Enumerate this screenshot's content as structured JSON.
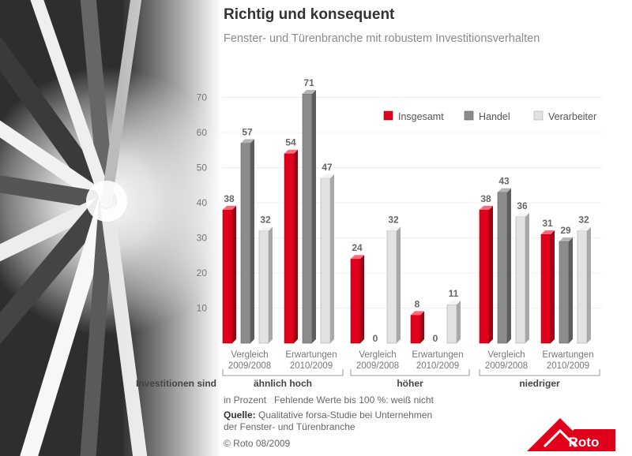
{
  "header": {
    "title": "Richtig und konsequent",
    "subtitle": "Fenster- und Türenbranche mit robustem Investitionsverhalten"
  },
  "footer": {
    "note_unit": "in Prozent",
    "note_missing": "Fehlende Werte bis 100 %: weiß nicht",
    "source_label": "Quelle:",
    "source_line1": "Qualitative forsa-Studie bei Unternehmen",
    "source_line2": "der Fenster- und Türenbranche",
    "copyright": "© Roto 08/2009"
  },
  "logo": {
    "text": "Roto"
  },
  "colors": {
    "insgesamt": "#e0001b",
    "handel": "#8c8c8c",
    "verarbeiter": "#e2e2e2"
  },
  "chart_data": {
    "type": "bar",
    "ylim": [
      0,
      75
    ],
    "yticks": [
      10,
      20,
      30,
      40,
      50,
      60,
      70
    ],
    "row_label": "Investitionen sind",
    "legend": {
      "placement": "top-right",
      "entries": [
        "Insgesamt",
        "Handel",
        "Verarbeiter"
      ]
    },
    "groups": [
      {
        "label": "ähnlich hoch",
        "categories": [
          {
            "label": [
              "Vergleich",
              "2009/2008"
            ],
            "values": [
              38,
              57,
              32
            ]
          },
          {
            "label": [
              "Erwartungen",
              "2010/2009"
            ],
            "values": [
              54,
              71,
              47
            ]
          }
        ]
      },
      {
        "label": "höher",
        "categories": [
          {
            "label": [
              "Vergleich",
              "2009/2008"
            ],
            "values": [
              24,
              0,
              32
            ]
          },
          {
            "label": [
              "Erwartungen",
              "2010/2009"
            ],
            "values": [
              8,
              0,
              11
            ]
          }
        ]
      },
      {
        "label": "niedriger",
        "categories": [
          {
            "label": [
              "Vergleich",
              "2009/2008"
            ],
            "values": [
              38,
              43,
              36
            ]
          },
          {
            "label": [
              "Erwartungen",
              "2010/2009"
            ],
            "values": [
              31,
              29,
              32
            ]
          }
        ]
      }
    ],
    "series": [
      {
        "name": "Insgesamt"
      },
      {
        "name": "Handel"
      },
      {
        "name": "Verarbeiter"
      }
    ]
  }
}
